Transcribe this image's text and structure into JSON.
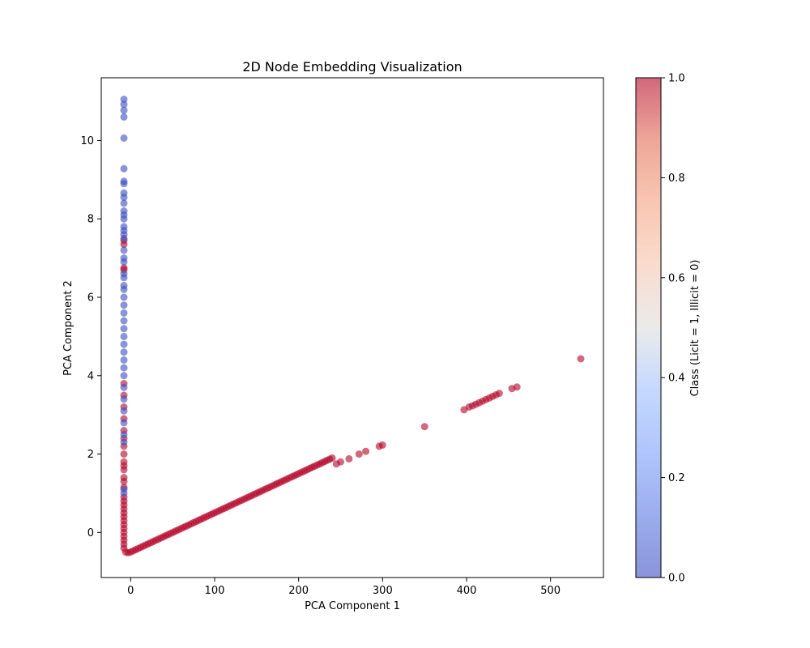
{
  "chart_data": {
    "type": "scatter",
    "title": "2D Node Embedding Visualization",
    "xlabel": "PCA Component 1",
    "ylabel": "PCA Component 2",
    "xlim": [
      -35,
      563
    ],
    "ylim": [
      -1.15,
      11.6
    ],
    "xticks": [
      0,
      100,
      200,
      300,
      400,
      500
    ],
    "yticks": [
      0,
      2,
      4,
      6,
      8,
      10
    ],
    "grid": false,
    "colormap": "coolwarm",
    "marker_alpha": 0.6,
    "colorbar": {
      "label": "Class (Licit = 1, Illicit = 0)",
      "range": [
        0.0,
        1.0
      ],
      "ticks": [
        0.0,
        0.2,
        0.4,
        0.6,
        0.8,
        1.0
      ],
      "tick_labels": [
        "0.0",
        "0.2",
        "0.4",
        "0.6",
        "0.8",
        "1.0"
      ]
    },
    "series": [
      {
        "class_value": 1,
        "color": "#b40426",
        "points": [
          [
            -8,
            7.45
          ],
          [
            -8,
            7.35
          ],
          [
            -8,
            6.75
          ],
          [
            -8,
            6.7
          ],
          [
            -8,
            3.8
          ],
          [
            -8,
            3.5
          ],
          [
            -8,
            3.2
          ],
          [
            -8,
            2.9
          ],
          [
            -8,
            2.6
          ],
          [
            -8,
            2.4
          ],
          [
            -8,
            2.2
          ],
          [
            -8,
            2.0
          ],
          [
            -8,
            1.8
          ],
          [
            -8,
            1.7
          ],
          [
            -8,
            1.6
          ],
          [
            -8,
            1.4
          ],
          [
            -8,
            1.3
          ],
          [
            -8,
            1.15
          ],
          [
            -8,
            0.9
          ],
          [
            -8,
            0.8
          ],
          [
            -8,
            0.7
          ],
          [
            -8,
            0.6
          ],
          [
            -8,
            0.5
          ],
          [
            -8,
            0.4
          ],
          [
            -8,
            0.3
          ],
          [
            -8,
            0.2
          ],
          [
            -8,
            0.1
          ],
          [
            -8,
            0.0
          ],
          [
            -8,
            -0.1
          ],
          [
            -8,
            -0.2
          ],
          [
            -8,
            -0.3
          ],
          [
            -8,
            -0.4
          ],
          [
            -6,
            -0.5
          ],
          [
            -3,
            -0.52
          ],
          [
            0,
            -0.5
          ],
          [
            3,
            -0.47
          ],
          [
            6,
            -0.44
          ],
          [
            9,
            -0.41
          ],
          [
            12,
            -0.38
          ],
          [
            15,
            -0.35
          ],
          [
            18,
            -0.32
          ],
          [
            21,
            -0.29
          ],
          [
            24,
            -0.26
          ],
          [
            27,
            -0.23
          ],
          [
            30,
            -0.2
          ],
          [
            33,
            -0.17
          ],
          [
            36,
            -0.14
          ],
          [
            39,
            -0.11
          ],
          [
            42,
            -0.08
          ],
          [
            45,
            -0.05
          ],
          [
            48,
            -0.02
          ],
          [
            51,
            0.01
          ],
          [
            54,
            0.04
          ],
          [
            57,
            0.07
          ],
          [
            60,
            0.1
          ],
          [
            63,
            0.13
          ],
          [
            66,
            0.16
          ],
          [
            69,
            0.19
          ],
          [
            72,
            0.22
          ],
          [
            75,
            0.25
          ],
          [
            78,
            0.28
          ],
          [
            81,
            0.31
          ],
          [
            84,
            0.34
          ],
          [
            87,
            0.37
          ],
          [
            90,
            0.4
          ],
          [
            93,
            0.43
          ],
          [
            96,
            0.46
          ],
          [
            99,
            0.49
          ],
          [
            102,
            0.52
          ],
          [
            105,
            0.55
          ],
          [
            108,
            0.58
          ],
          [
            111,
            0.61
          ],
          [
            114,
            0.64
          ],
          [
            117,
            0.67
          ],
          [
            120,
            0.7
          ],
          [
            123,
            0.73
          ],
          [
            126,
            0.76
          ],
          [
            129,
            0.79
          ],
          [
            132,
            0.82
          ],
          [
            135,
            0.85
          ],
          [
            138,
            0.88
          ],
          [
            141,
            0.91
          ],
          [
            144,
            0.94
          ],
          [
            147,
            0.97
          ],
          [
            150,
            1.0
          ],
          [
            153,
            1.03
          ],
          [
            156,
            1.06
          ],
          [
            159,
            1.09
          ],
          [
            162,
            1.12
          ],
          [
            165,
            1.15
          ],
          [
            168,
            1.18
          ],
          [
            171,
            1.21
          ],
          [
            174,
            1.24
          ],
          [
            177,
            1.27
          ],
          [
            180,
            1.3
          ],
          [
            183,
            1.33
          ],
          [
            186,
            1.36
          ],
          [
            189,
            1.39
          ],
          [
            192,
            1.42
          ],
          [
            195,
            1.45
          ],
          [
            198,
            1.48
          ],
          [
            201,
            1.51
          ],
          [
            204,
            1.54
          ],
          [
            207,
            1.57
          ],
          [
            210,
            1.6
          ],
          [
            213,
            1.63
          ],
          [
            216,
            1.66
          ],
          [
            219,
            1.69
          ],
          [
            222,
            1.72
          ],
          [
            225,
            1.75
          ],
          [
            228,
            1.78
          ],
          [
            231,
            1.81
          ],
          [
            234,
            1.84
          ],
          [
            237,
            1.87
          ],
          [
            240,
            1.9
          ],
          [
            245,
            1.75
          ],
          [
            250,
            1.8
          ],
          [
            260,
            1.88
          ],
          [
            272,
            2.0
          ],
          [
            280,
            2.07
          ],
          [
            296,
            2.2
          ],
          [
            300,
            2.23
          ],
          [
            350,
            2.7
          ],
          [
            397,
            3.13
          ],
          [
            403,
            3.2
          ],
          [
            407,
            3.23
          ],
          [
            411,
            3.27
          ],
          [
            415,
            3.31
          ],
          [
            419,
            3.35
          ],
          [
            423,
            3.39
          ],
          [
            427,
            3.43
          ],
          [
            431,
            3.47
          ],
          [
            435,
            3.51
          ],
          [
            439,
            3.55
          ],
          [
            454,
            3.67
          ],
          [
            460,
            3.71
          ],
          [
            536,
            4.43
          ]
        ]
      },
      {
        "class_value": 0,
        "color": "#3b4cc0",
        "points": [
          [
            -8,
            11.05
          ],
          [
            -8,
            10.92
          ],
          [
            -8,
            10.77
          ],
          [
            -8,
            10.6
          ],
          [
            -8,
            10.06
          ],
          [
            -8,
            9.28
          ],
          [
            -8,
            8.96
          ],
          [
            -8,
            8.9
          ],
          [
            -8,
            8.66
          ],
          [
            -8,
            8.55
          ],
          [
            -8,
            8.4
          ],
          [
            -8,
            8.2
          ],
          [
            -8,
            8.1
          ],
          [
            -8,
            8.0
          ],
          [
            -8,
            7.8
          ],
          [
            -8,
            7.7
          ],
          [
            -8,
            7.6
          ],
          [
            -8,
            7.5
          ],
          [
            -8,
            7.2
          ],
          [
            -8,
            7.0
          ],
          [
            -8,
            6.9
          ],
          [
            -8,
            6.6
          ],
          [
            -8,
            6.5
          ],
          [
            -8,
            6.3
          ],
          [
            -8,
            6.2
          ],
          [
            -8,
            6.0
          ],
          [
            -8,
            5.8
          ],
          [
            -8,
            5.6
          ],
          [
            -8,
            5.4
          ],
          [
            -8,
            5.2
          ],
          [
            -8,
            5.0
          ],
          [
            -8,
            4.8
          ],
          [
            -8,
            4.6
          ],
          [
            -8,
            4.4
          ],
          [
            -8,
            4.2
          ],
          [
            -8,
            4.0
          ],
          [
            -8,
            3.7
          ],
          [
            -8,
            3.4
          ],
          [
            -8,
            3.1
          ],
          [
            -8,
            2.8
          ],
          [
            -8,
            2.5
          ],
          [
            -8,
            2.3
          ],
          [
            -8,
            1.1
          ],
          [
            -8,
            1.0
          ]
        ]
      }
    ]
  }
}
